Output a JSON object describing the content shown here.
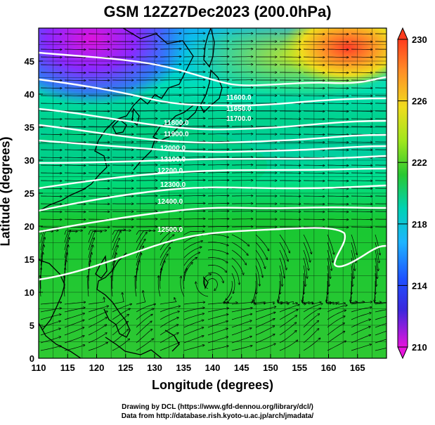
{
  "title": "GSM 12Z27Dec2023 (200.0hPa)",
  "xlabel": "Longitude (degrees)",
  "ylabel": "Latitude  (degrees)",
  "x_ticks": [
    "110",
    "115",
    "120",
    "125",
    "130",
    "135",
    "140",
    "145",
    "150",
    "155",
    "160",
    "165"
  ],
  "y_ticks": [
    "0",
    "5",
    "10",
    "15",
    "20",
    "25",
    "30",
    "35",
    "40",
    "45"
  ],
  "colorbar_labels": [
    "230",
    "226",
    "222",
    "218",
    "214",
    "210"
  ],
  "contour_labels": [
    "11600.0",
    "11650.0",
    "11700.0",
    "11800.0",
    "11900.0",
    "12000.0",
    "12100.0",
    "12200.0",
    "12300.0",
    "12400.0",
    "12500.0"
  ],
  "credits": {
    "line1": "Drawing by DCL (https://www.gfd-dennou.org/library/dcl/)",
    "line2": "Data from http://database.rish.kyoto-u.ac.jp/arch/jmadata/"
  },
  "chart_data": {
    "type": "heatmap",
    "title": "GSM 12Z27Dec2023 (200.0hPa)",
    "xlabel": "Longitude (degrees)",
    "ylabel": "Latitude  (degrees)",
    "xlim": [
      110,
      170
    ],
    "ylim": [
      0,
      50
    ],
    "color_scale": {
      "min": 210,
      "max": 230,
      "ticks": [
        210,
        214,
        218,
        222,
        226,
        230
      ]
    },
    "overlays": [
      "streamlines",
      "geopotential height contours",
      "coastlines",
      "lat-lon grid"
    ]
  }
}
